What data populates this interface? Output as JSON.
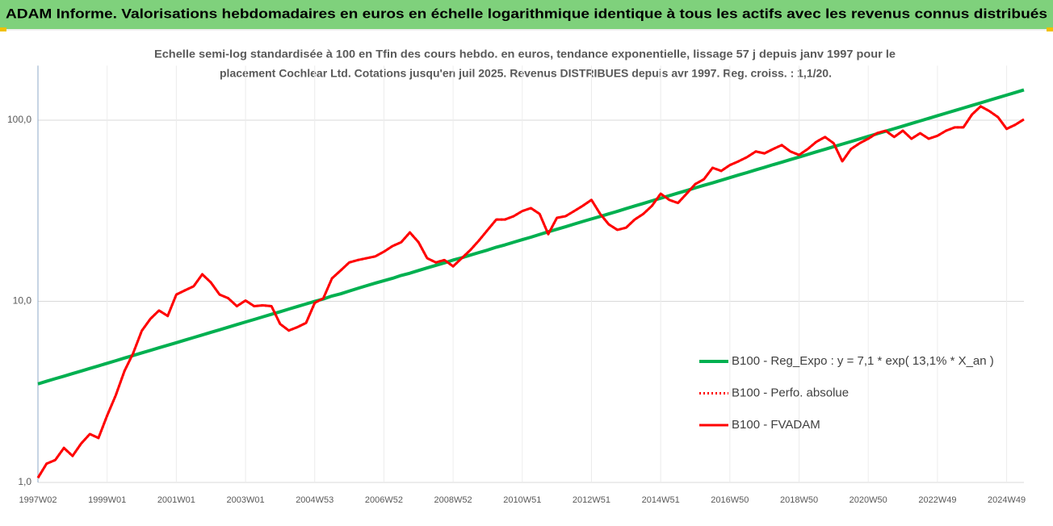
{
  "header": {
    "title": "ADAM Informe. Valorisations hebdomadaires en euros en échelle logarithmique identique à tous les actifs avec les revenus connus distribués"
  },
  "chart_data": {
    "type": "line",
    "title": [
      "Echelle semi-log standardisée à 100 en Tfin des cours hebdo. en euros, tendance exponentielle, lissage 57 j depuis janv 1997 pour le",
      "placement Cochlear Ltd. Cotations jusqu'en juil 2025. Revenus DISTRIBUES depuis avr 1997.  Reg. croiss. : 1,1/20."
    ],
    "categories": [
      "1997W02",
      null,
      null,
      null,
      null,
      null,
      null,
      null,
      "1999W01",
      null,
      null,
      null,
      null,
      null,
      null,
      null,
      "2001W01",
      null,
      null,
      null,
      null,
      null,
      null,
      null,
      "2003W01",
      null,
      null,
      null,
      null,
      null,
      null,
      null,
      "2004W53",
      null,
      null,
      null,
      null,
      null,
      null,
      null,
      "2006W52",
      null,
      null,
      null,
      null,
      null,
      null,
      null,
      "2008W52",
      null,
      null,
      null,
      null,
      null,
      null,
      null,
      "2010W51",
      null,
      null,
      null,
      null,
      null,
      null,
      null,
      "2012W51",
      null,
      null,
      null,
      null,
      null,
      null,
      null,
      "2014W51",
      null,
      null,
      null,
      null,
      null,
      null,
      null,
      "2016W50",
      null,
      null,
      null,
      null,
      null,
      null,
      null,
      "2018W50",
      null,
      null,
      null,
      null,
      null,
      null,
      null,
      "2020W50",
      null,
      null,
      null,
      null,
      null,
      null,
      null,
      "2022W49",
      null,
      null,
      null,
      null,
      null,
      null,
      null,
      "2024W49",
      null,
      null
    ],
    "log_scale": true,
    "grid": true,
    "legend": "lower right",
    "ylim": [
      1,
      200
    ],
    "yticks": [
      {
        "value": 1,
        "label": "1,0"
      },
      {
        "value": 10,
        "label": "10,0"
      },
      {
        "value": 100,
        "label": "100,0"
      }
    ],
    "series": [
      {
        "name": "B100 - Reg_Expo : y = 7,1 * exp( 13,1% *  X_an )",
        "color": "#00b050",
        "style": "solid",
        "values": [
          3.5,
          3.62,
          3.74,
          3.86,
          3.99,
          4.12,
          4.26,
          4.4,
          4.55,
          4.7,
          4.86,
          5.02,
          5.19,
          5.36,
          5.54,
          5.72,
          5.91,
          6.11,
          6.31,
          6.52,
          6.74,
          6.96,
          7.2,
          7.44,
          7.69,
          7.94,
          8.21,
          8.48,
          8.76,
          9.06,
          9.36,
          9.67,
          10.0,
          10.3,
          10.7,
          11.0,
          11.4,
          11.8,
          12.2,
          12.6,
          13.0,
          13.4,
          13.9,
          14.3,
          14.8,
          15.3,
          15.8,
          16.3,
          16.9,
          17.4,
          18.0,
          18.6,
          19.2,
          19.9,
          20.5,
          21.2,
          21.9,
          22.6,
          23.4,
          24.2,
          25.0,
          25.8,
          26.7,
          27.6,
          28.5,
          29.4,
          30.4,
          31.4,
          32.5,
          33.6,
          34.7,
          35.9,
          37.1,
          38.3,
          39.6,
          40.9,
          42.3,
          43.7,
          45.1,
          46.6,
          48.2,
          49.8,
          51.4,
          53.2,
          54.9,
          56.8,
          58.6,
          60.6,
          62.6,
          64.7,
          66.9,
          69.1,
          71.4,
          73.8,
          76.2,
          78.8,
          81.4,
          84.1,
          86.9,
          89.8,
          92.8,
          95.9,
          99.1,
          102.4,
          105.9,
          109.4,
          113.0,
          116.8,
          120.7,
          124.7,
          128.9,
          133.2,
          137.6,
          142.2,
          147.0
        ]
      },
      {
        "name": "B100 - Perfo. absolue",
        "color": "#ff0000",
        "style": "dotted",
        "values": [
          1.06,
          1.27,
          1.33,
          1.55,
          1.4,
          1.64,
          1.85,
          1.76,
          2.34,
          3.03,
          4.12,
          5.16,
          6.87,
          8.0,
          8.9,
          8.3,
          10.9,
          11.5,
          12.1,
          14.1,
          12.7,
          10.9,
          10.4,
          9.4,
          10.1,
          9.4,
          9.5,
          9.4,
          7.5,
          6.9,
          7.2,
          7.6,
          9.8,
          10.4,
          13.4,
          14.8,
          16.4,
          16.9,
          17.3,
          17.7,
          18.8,
          20.2,
          21.2,
          24.0,
          21.2,
          17.3,
          16.4,
          16.9,
          15.6,
          17.3,
          19.2,
          21.7,
          24.8,
          28.3,
          28.3,
          29.5,
          31.5,
          32.7,
          30.4,
          23.5,
          28.9,
          29.5,
          31.5,
          33.7,
          36.3,
          30.4,
          26.6,
          24.8,
          25.5,
          28.3,
          30.4,
          33.7,
          39.3,
          36.3,
          34.9,
          39.3,
          44.4,
          47.2,
          54.6,
          52.5,
          56.5,
          59.3,
          62.6,
          67.2,
          65.6,
          69.3,
          72.9,
          67.2,
          64.3,
          69.3,
          76.0,
          80.8,
          74.6,
          59.3,
          69.3,
          74.6,
          79.0,
          84.8,
          87.5,
          80.8,
          87.5,
          79.0,
          84.8,
          79.0,
          82.0,
          87.5,
          91.3,
          91.3,
          107.6,
          119.3,
          112.3,
          104.0,
          89.6,
          94.4,
          101.1
        ]
      },
      {
        "name": "B100 - FVADAM",
        "color": "#ff0000",
        "style": "solid",
        "values": [
          1.06,
          1.27,
          1.33,
          1.55,
          1.4,
          1.64,
          1.85,
          1.76,
          2.34,
          3.03,
          4.12,
          5.16,
          6.87,
          8.0,
          8.9,
          8.3,
          10.9,
          11.5,
          12.1,
          14.1,
          12.7,
          10.9,
          10.4,
          9.4,
          10.1,
          9.4,
          9.5,
          9.4,
          7.5,
          6.9,
          7.2,
          7.6,
          9.8,
          10.4,
          13.4,
          14.8,
          16.4,
          16.9,
          17.3,
          17.7,
          18.8,
          20.2,
          21.2,
          24.0,
          21.2,
          17.3,
          16.4,
          16.9,
          15.6,
          17.3,
          19.2,
          21.7,
          24.8,
          28.3,
          28.3,
          29.5,
          31.5,
          32.7,
          30.4,
          23.5,
          28.9,
          29.5,
          31.5,
          33.7,
          36.3,
          30.4,
          26.6,
          24.8,
          25.5,
          28.3,
          30.4,
          33.7,
          39.3,
          36.3,
          34.9,
          39.3,
          44.4,
          47.2,
          54.6,
          52.5,
          56.5,
          59.3,
          62.6,
          67.2,
          65.6,
          69.3,
          72.9,
          67.2,
          64.3,
          69.3,
          76.0,
          80.8,
          74.6,
          59.3,
          69.3,
          74.6,
          79.0,
          84.8,
          87.5,
          80.8,
          87.5,
          79.0,
          84.8,
          79.0,
          82.0,
          87.5,
          91.3,
          91.3,
          107.6,
          119.3,
          112.3,
          104.0,
          89.6,
          94.4,
          101.1
        ]
      }
    ]
  }
}
